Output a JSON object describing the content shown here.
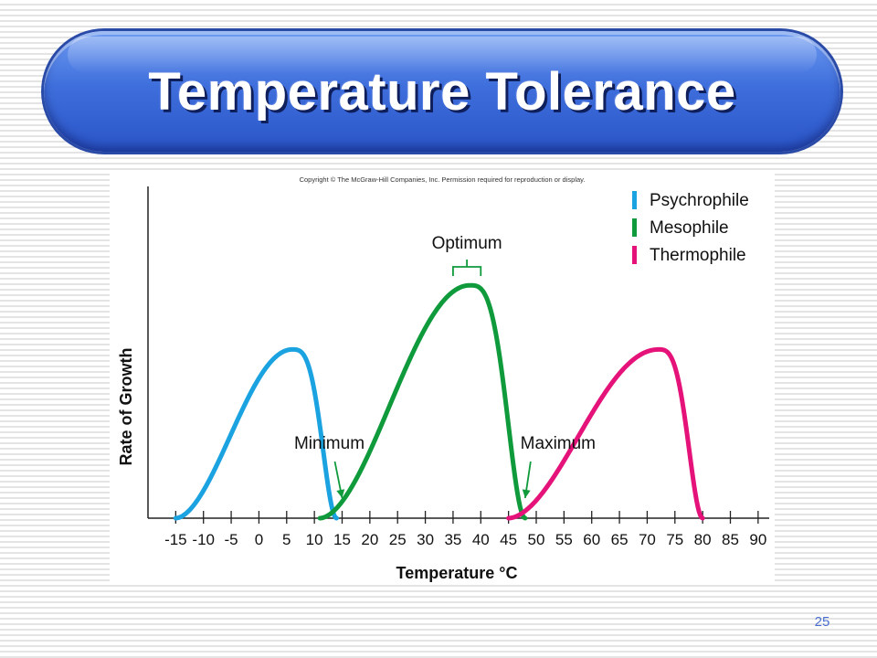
{
  "slide": {
    "title": "Temperature Tolerance",
    "number": "25"
  },
  "figure": {
    "copyright": "Copyright © The McGraw-Hill Companies, Inc. Permission required for reproduction or display."
  },
  "chart_data": {
    "type": "line",
    "xlabel": "Temperature °C",
    "ylabel": "Rate of Growth",
    "xlim": [
      -20,
      92
    ],
    "ylim": [
      0,
      1
    ],
    "x_ticks": [
      -15,
      -10,
      -5,
      0,
      5,
      10,
      15,
      20,
      25,
      30,
      35,
      40,
      45,
      50,
      55,
      60,
      65,
      70,
      75,
      80,
      85,
      90
    ],
    "legend_position": "top-right",
    "series": [
      {
        "name": "Psychrophile",
        "color": "#1aa3e0",
        "min": -15,
        "optimum": 6,
        "max": 14,
        "peak": 0.71
      },
      {
        "name": "Mesophile",
        "color": "#0f9a3c",
        "min": 11,
        "optimum": 38,
        "max": 48,
        "peak": 0.98
      },
      {
        "name": "Thermophile",
        "color": "#e5127a",
        "min": 45,
        "optimum": 72,
        "max": 80,
        "peak": 0.71
      }
    ],
    "annotations": [
      {
        "text": "Optimum",
        "target": "Mesophile",
        "x_range": [
          35,
          40
        ]
      },
      {
        "text": "Minimum",
        "target": "Mesophile",
        "x": 15
      },
      {
        "text": "Maximum",
        "target": "Mesophile",
        "x": 48
      }
    ]
  }
}
